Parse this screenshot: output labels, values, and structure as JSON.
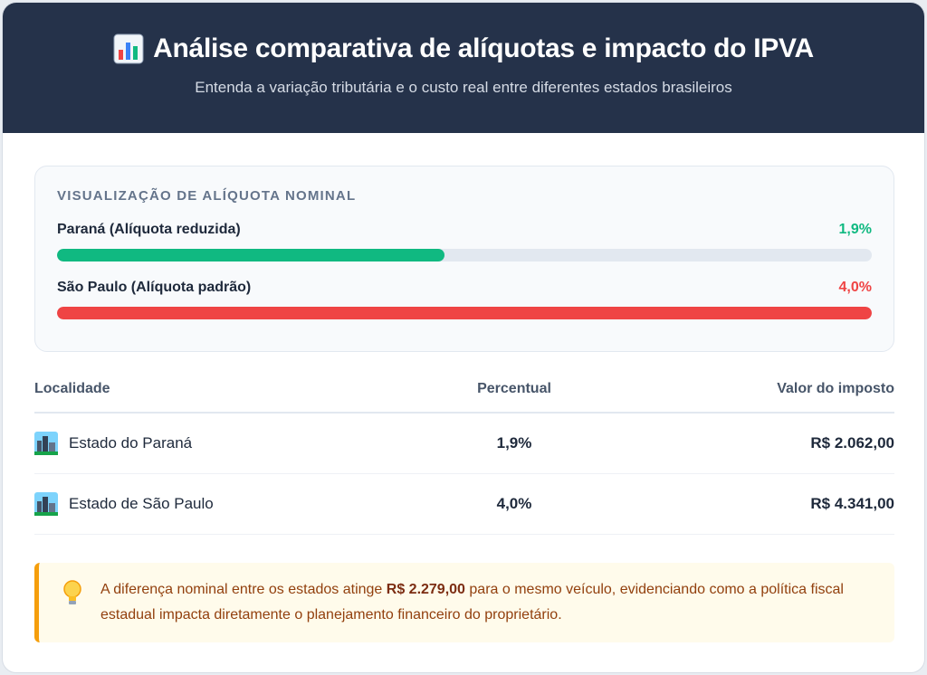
{
  "header": {
    "title": "Análise comparativa de alíquotas e impacto do IPVA",
    "title_icon": "bar-chart-icon",
    "subtitle": "Entenda a variação tributária e o custo real entre diferentes estados brasileiros"
  },
  "nominal": {
    "heading": "Visualização de Alíquota Nominal",
    "bars": [
      {
        "label": "Paraná (Alíquota reduzida)",
        "value_text": "1,9%",
        "fill_fraction": 0.475,
        "color": "#10b981"
      },
      {
        "label": "São Paulo (Alíquota padrão)",
        "value_text": "4,0%",
        "fill_fraction": 1.0,
        "color": "#ef4444"
      }
    ]
  },
  "table": {
    "headers": [
      "Localidade",
      "Percentual",
      "Valor do imposto"
    ],
    "rows": [
      {
        "icon": "cityscape-icon",
        "location": "Estado do Paraná",
        "percent": "1,9%",
        "value": "R$ 2.062,00"
      },
      {
        "icon": "cityscape-icon",
        "location": "Estado de São Paulo",
        "percent": "4,0%",
        "value": "R$ 4.341,00"
      }
    ]
  },
  "note": {
    "icon": "lightbulb-icon",
    "text_before": "A diferença nominal entre os estados atinge ",
    "highlight": "R$ 2.279,00",
    "text_after": " para o mesmo veículo, evidenciando como a política fiscal estadual impacta diretamente o planejamento financeiro do proprietário."
  },
  "colors": {
    "header_bg": "#25324a",
    "green": "#10b981",
    "red": "#ef4444",
    "note_accent": "#f59e0b"
  }
}
